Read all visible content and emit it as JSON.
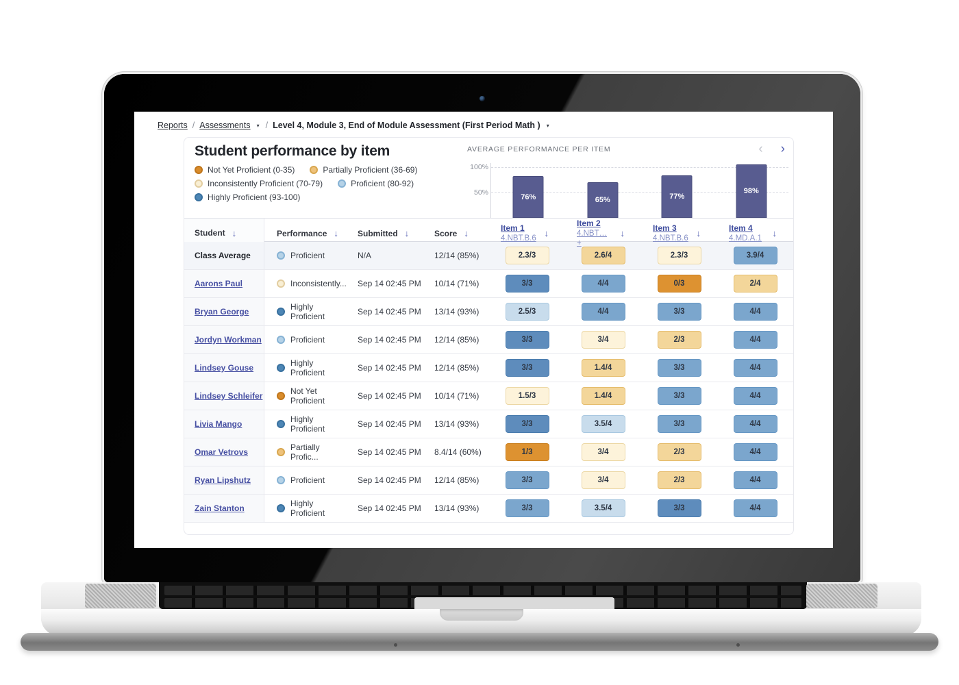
{
  "colors": {
    "bar": "#585c90",
    "accent": "#5661b3",
    "student-link": "#4750a3",
    "tone-darkblue-bg": "#5e8cbc",
    "tone-darkblue-br": "#4a7cae",
    "tone-blue-bg": "#7ba6cd",
    "tone-blue-br": "#6697c4",
    "tone-lightblue-bg": "#c8dcec",
    "tone-lightblue-br": "#a9c8e0",
    "tone-cream-bg": "#fdf3da",
    "tone-cream-br": "#ecd7a4",
    "tone-tan-bg": "#f3d69a",
    "tone-tan-br": "#e5bc6b",
    "tone-orange-bg": "#dd9231",
    "tone-orange-br": "#c97e1e",
    "dot-orange-bg": "#d98c2b",
    "dot-orange-br": "#c0761c",
    "dot-tan-bg": "#eec27b",
    "dot-tan-br": "#d8a74f",
    "dot-cream-bg": "#f9efd4",
    "dot-cream-br": "#e2cda0",
    "dot-lightblue-bg": "#b5d2e7",
    "dot-lightblue-br": "#86b2d4",
    "dot-blue-bg": "#4d86b5",
    "dot-blue-br": "#39719f"
  },
  "breadcrumb": {
    "reports": "Reports",
    "assessments": "Assessments",
    "current": "Level 4, Module 3, End of Module Assessment (First Period Math )",
    "separator": "/",
    "caret": "▾"
  },
  "header": {
    "title": "Student performance by item"
  },
  "legend": [
    {
      "label": "Not Yet Proficient (0-35)",
      "tone": "orange"
    },
    {
      "label": "Partially Proficient (36-69)",
      "tone": "tan"
    },
    {
      "label": "Inconsistently Proficient (70-79)",
      "tone": "cream"
    },
    {
      "label": "Proficient (80-92)",
      "tone": "lightblue"
    },
    {
      "label": "Highly Proficient (93-100)",
      "tone": "blue"
    }
  ],
  "chart_data": {
    "type": "bar",
    "title": "AVERAGE PERFORMANCE PER ITEM",
    "categories": [
      "Item 1",
      "Item 2",
      "Item 3",
      "Item 4"
    ],
    "standards": [
      "4.NBT.B.6",
      "4.NBT… +",
      "4.NBT.B.6",
      "4.MD.A.1"
    ],
    "values": [
      76,
      65,
      77,
      98
    ],
    "value_labels": [
      "76%",
      "65%",
      "77%",
      "98%"
    ],
    "ylim": [
      0,
      100
    ],
    "ytick_labels": [
      "100%",
      "50%"
    ],
    "grid": "dashed horizontal at 100% and 50%",
    "legend_position": "none",
    "nav": {
      "prev_icon": "‹",
      "next_icon": "›"
    }
  },
  "table": {
    "sort_icon": "↓",
    "columns": [
      "Student",
      "Performance",
      "Submitted",
      "Score"
    ],
    "item_columns": [
      {
        "label": "Item 1",
        "standard": "4.NBT.B.6"
      },
      {
        "label": "Item 2",
        "standard": "4.NBT… +"
      },
      {
        "label": "Item 3",
        "standard": "4.NBT.B.6"
      },
      {
        "label": "Item 4",
        "standard": "4.MD.A.1"
      }
    ],
    "rows": [
      {
        "student": "Class Average",
        "performance": {
          "label": "Proficient",
          "tone": "lightblue"
        },
        "submitted": "N/A",
        "score": "12/14 (85%)",
        "items": [
          {
            "text": "2.3/3",
            "tone": "cream"
          },
          {
            "text": "2.6/4",
            "tone": "tan"
          },
          {
            "text": "2.3/3",
            "tone": "cream"
          },
          {
            "text": "3.9/4",
            "tone": "blue"
          }
        ]
      },
      {
        "student": "Aarons Paul",
        "performance": {
          "label": "Inconsistently...",
          "tone": "cream"
        },
        "submitted": "Sep 14 02:45 PM",
        "score": "10/14 (71%)",
        "items": [
          {
            "text": "3/3",
            "tone": "darkblue"
          },
          {
            "text": "4/4",
            "tone": "blue"
          },
          {
            "text": "0/3",
            "tone": "orange"
          },
          {
            "text": "2/4",
            "tone": "tan"
          }
        ]
      },
      {
        "student": "Bryan George",
        "performance": {
          "label": "Highly Proficient",
          "tone": "blue"
        },
        "submitted": "Sep 14 02:45 PM",
        "score": "13/14 (93%)",
        "items": [
          {
            "text": "2.5/3",
            "tone": "lightblue"
          },
          {
            "text": "4/4",
            "tone": "blue"
          },
          {
            "text": "3/3",
            "tone": "blue"
          },
          {
            "text": "4/4",
            "tone": "blue"
          }
        ]
      },
      {
        "student": "Jordyn Workman",
        "performance": {
          "label": "Proficient",
          "tone": "lightblue"
        },
        "submitted": "Sep 14 02:45 PM",
        "score": "12/14 (85%)",
        "items": [
          {
            "text": "3/3",
            "tone": "darkblue"
          },
          {
            "text": "3/4",
            "tone": "cream"
          },
          {
            "text": "2/3",
            "tone": "tan"
          },
          {
            "text": "4/4",
            "tone": "blue"
          }
        ]
      },
      {
        "student": "Lindsey Gouse",
        "performance": {
          "label": "Highly Proficient",
          "tone": "blue"
        },
        "submitted": "Sep 14 02:45 PM",
        "score": "12/14 (85%)",
        "items": [
          {
            "text": "3/3",
            "tone": "darkblue"
          },
          {
            "text": "1.4/4",
            "tone": "tan"
          },
          {
            "text": "3/3",
            "tone": "blue"
          },
          {
            "text": "4/4",
            "tone": "blue"
          }
        ]
      },
      {
        "student": "Lindsey Schleifer",
        "performance": {
          "label": "Not Yet Proficient",
          "tone": "orange"
        },
        "submitted": "Sep 14 02:45 PM",
        "score": "10/14 (71%)",
        "items": [
          {
            "text": "1.5/3",
            "tone": "cream"
          },
          {
            "text": "1.4/4",
            "tone": "tan"
          },
          {
            "text": "3/3",
            "tone": "blue"
          },
          {
            "text": "4/4",
            "tone": "blue"
          }
        ]
      },
      {
        "student": "Livia Mango",
        "performance": {
          "label": "Highly Proficient",
          "tone": "blue"
        },
        "submitted": "Sep 14 02:45 PM",
        "score": "13/14 (93%)",
        "items": [
          {
            "text": "3/3",
            "tone": "darkblue"
          },
          {
            "text": "3.5/4",
            "tone": "lightblue"
          },
          {
            "text": "3/3",
            "tone": "blue"
          },
          {
            "text": "4/4",
            "tone": "blue"
          }
        ]
      },
      {
        "student": "Omar Vetrovs",
        "performance": {
          "label": "Partially Profic...",
          "tone": "tan"
        },
        "submitted": "Sep 14 02:45 PM",
        "score": "8.4/14 (60%)",
        "items": [
          {
            "text": "1/3",
            "tone": "orange"
          },
          {
            "text": "3/4",
            "tone": "cream"
          },
          {
            "text": "2/3",
            "tone": "tan"
          },
          {
            "text": "4/4",
            "tone": "blue"
          }
        ]
      },
      {
        "student": "Ryan Lipshutz",
        "performance": {
          "label": "Proficient",
          "tone": "lightblue"
        },
        "submitted": "Sep 14 02:45 PM",
        "score": "12/14 (85%)",
        "items": [
          {
            "text": "3/3",
            "tone": "blue"
          },
          {
            "text": "3/4",
            "tone": "cream"
          },
          {
            "text": "2/3",
            "tone": "tan"
          },
          {
            "text": "4/4",
            "tone": "blue"
          }
        ]
      },
      {
        "student": "Zain Stanton",
        "performance": {
          "label": "Highly Proficient",
          "tone": "blue"
        },
        "submitted": "Sep 14 02:45 PM",
        "score": "13/14 (93%)",
        "items": [
          {
            "text": "3/3",
            "tone": "blue"
          },
          {
            "text": "3.5/4",
            "tone": "lightblue"
          },
          {
            "text": "3/3",
            "tone": "darkblue"
          },
          {
            "text": "4/4",
            "tone": "blue"
          }
        ]
      }
    ]
  }
}
